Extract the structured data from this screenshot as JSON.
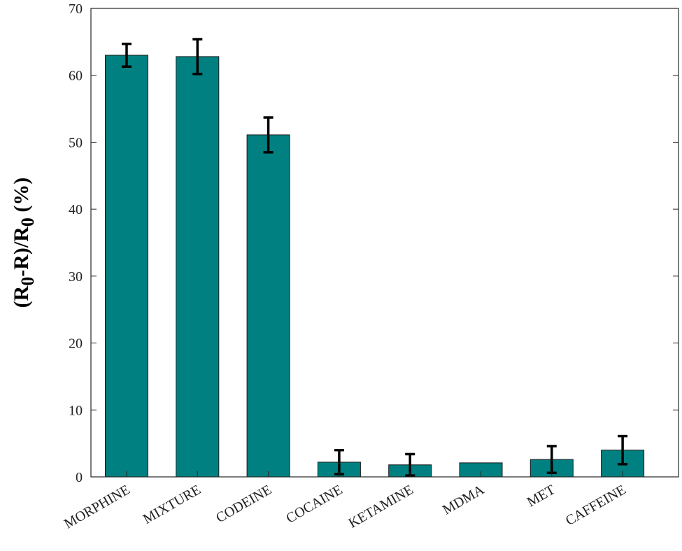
{
  "chart_data": {
    "type": "bar",
    "title": "",
    "xlabel": "",
    "ylabel": {
      "parts": [
        {
          "text": "(R",
          "sub": false
        },
        {
          "text": "0",
          "sub": true
        },
        {
          "text": "-R)/R",
          "sub": false
        },
        {
          "text": "0",
          "sub": true
        },
        {
          "text": " (%)",
          "sub": false
        }
      ]
    },
    "categories": [
      "MORPHINE",
      "MIXTURE",
      "CODEINE",
      "COCAINE",
      "KETAMINE",
      "MDMA",
      "MET",
      "CAFFEINE"
    ],
    "values": [
      63.0,
      62.8,
      51.1,
      2.2,
      1.8,
      2.1,
      2.6,
      4.0
    ],
    "errors": [
      1.7,
      2.6,
      2.6,
      1.8,
      1.6,
      0,
      2.0,
      2.1
    ],
    "ylim": [
      0,
      70
    ],
    "yticks": [
      0,
      10,
      20,
      30,
      40,
      50,
      60,
      70
    ],
    "bar_color": "#008080",
    "grid": false,
    "legend": "none"
  }
}
